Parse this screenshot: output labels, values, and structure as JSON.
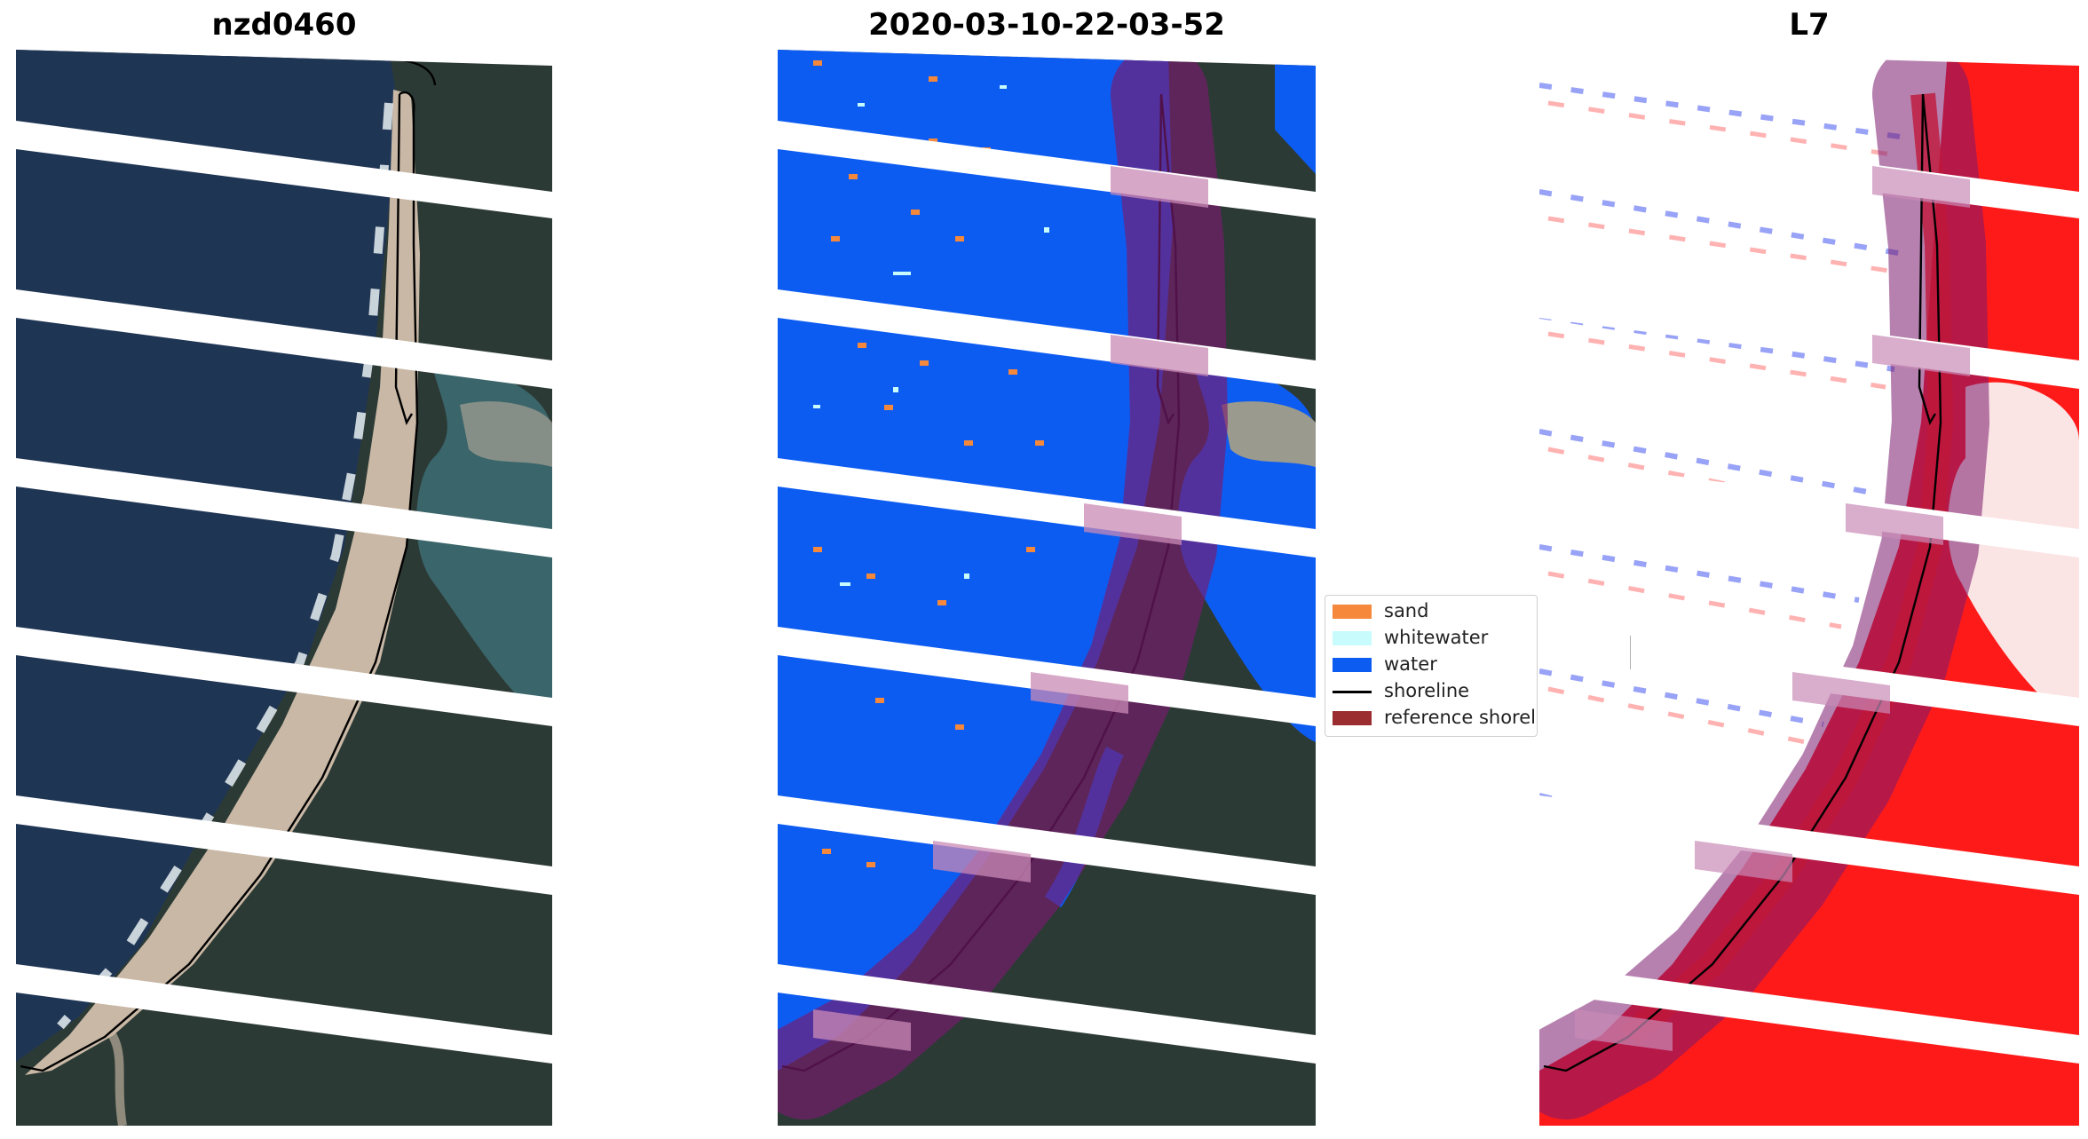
{
  "panels": [
    {
      "title": "nzd0460",
      "kind": "rgb-composite"
    },
    {
      "title": "2020-03-10-22-03-52",
      "kind": "classification"
    },
    {
      "title": "L7",
      "kind": "mndwi-index"
    }
  ],
  "legend": {
    "items": [
      {
        "label": "sand",
        "type": "patch",
        "color": "#f5883a"
      },
      {
        "label": "whitewater",
        "type": "patch",
        "color": "#c8fbfb"
      },
      {
        "label": "water",
        "type": "patch",
        "color": "#0d5cf2"
      },
      {
        "label": "shoreline",
        "type": "line",
        "color": "#000000"
      },
      {
        "label": "reference shoreli",
        "type": "patch",
        "color": "#9b2c30"
      }
    ]
  },
  "colors": {
    "ocean": "#1f3554",
    "beach": "#c9b8a6",
    "forest": "#2c3a35",
    "river": "#3c6a70",
    "water_class": "#0d5cf2",
    "buffer_overlay": "#7a1a6e",
    "index_red": "#ff1a1a",
    "index_blue": "#4455ee"
  }
}
